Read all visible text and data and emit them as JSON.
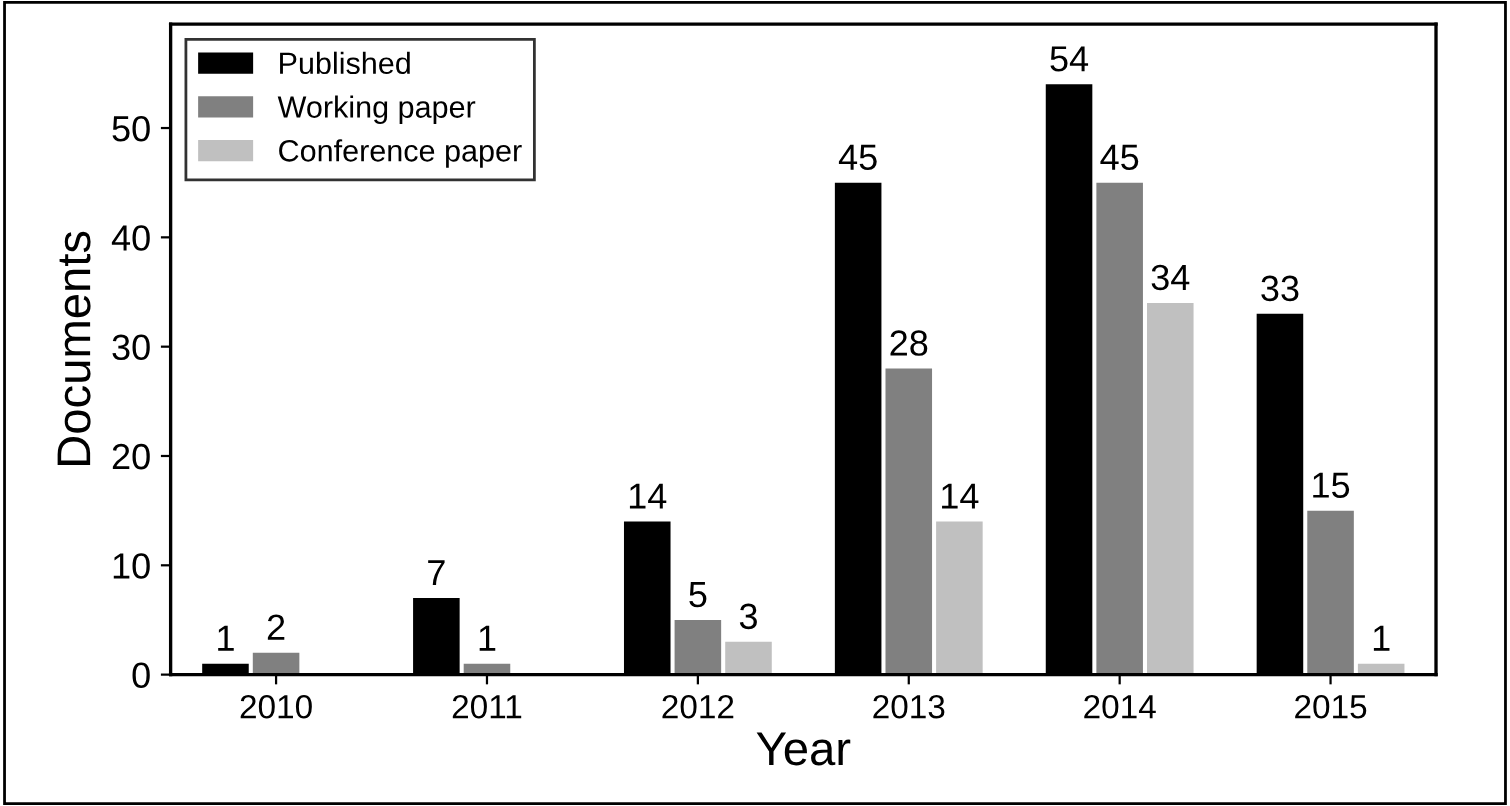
{
  "chart_data": {
    "type": "bar",
    "xlabel": "Year",
    "ylabel": "Documents",
    "categories": [
      "2010",
      "2011",
      "2012",
      "2013",
      "2014",
      "2015"
    ],
    "series": [
      {
        "name": "Published",
        "color": "#000000",
        "values": [
          1,
          7,
          14,
          45,
          54,
          33
        ]
      },
      {
        "name": "Working paper",
        "color": "#808080",
        "values": [
          2,
          1,
          5,
          28,
          45,
          15
        ]
      },
      {
        "name": "Conference paper",
        "color": "#c0c0c0",
        "values": [
          null,
          null,
          3,
          14,
          34,
          1
        ]
      }
    ],
    "ylim": [
      0,
      59.5
    ],
    "yticks": [
      0,
      10,
      20,
      30,
      40,
      50
    ],
    "data_labels": true,
    "legend": "top left",
    "grid": false
  }
}
